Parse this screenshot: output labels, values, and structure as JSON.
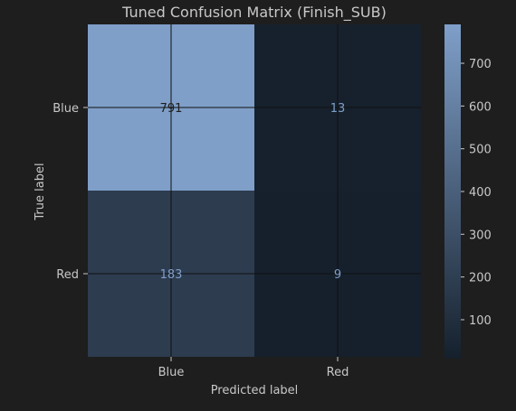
{
  "chart_data": {
    "type": "heatmap",
    "title": "Tuned Confusion Matrix (Finish_SUB)",
    "xlabel": "Predicted label",
    "ylabel": "True label",
    "x_categories": [
      "Blue",
      "Red"
    ],
    "y_categories": [
      "Blue",
      "Red"
    ],
    "values": [
      [
        791,
        13
      ],
      [
        183,
        9
      ]
    ],
    "colorbar": {
      "range": [
        9,
        791
      ],
      "ticks": [
        100,
        200,
        300,
        400,
        500,
        600,
        700
      ],
      "colormap": [
        "#15202c",
        "#7f9fc9"
      ]
    },
    "grid": true
  },
  "colors": {
    "background": "#1e1e1e",
    "text": "#c8c8c8",
    "cell_text_dark": "#1e1e1e",
    "cell_text_light": "#7f9fc9",
    "gridline": "#111111"
  }
}
